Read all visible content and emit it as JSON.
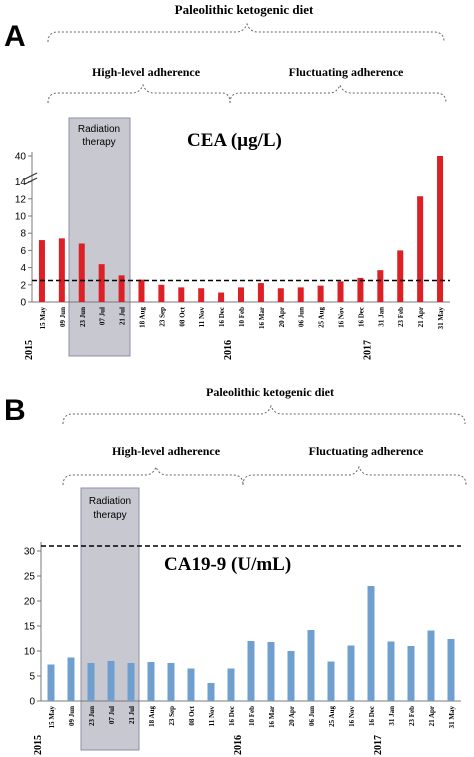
{
  "colors": {
    "cea_bar": "#dd1f26",
    "ca199_bar": "#6f9fcf",
    "radiation_fill": "#c8c8d0",
    "radiation_stroke": "#8e8ea8",
    "axis": "#7a7a7a",
    "text": "#000000"
  },
  "panels": [
    {
      "label": "A",
      "diet_label": "Paleolithic ketogenic diet",
      "phase_labels": [
        "High-level adherence",
        "Fluctuating adherence"
      ],
      "radiation_label_1": "Radiation",
      "radiation_label_2": "therapy",
      "chart_title": "CEA (µg/L)",
      "year_labels": [
        "2015",
        "2016",
        "2017"
      ]
    },
    {
      "label": "B",
      "diet_label": "Paleolithic ketogenic diet",
      "phase_labels": [
        "High-level adherence",
        "Fluctuating adherence"
      ],
      "radiation_label_1": "Radiation",
      "radiation_label_2": "therapy",
      "chart_title": "CA19-9 (U/mL)",
      "year_labels": [
        "2015",
        "2016",
        "2017"
      ]
    }
  ],
  "chart_data": [
    {
      "type": "bar",
      "title": "CEA (µg/L)",
      "categories": [
        "15 May",
        "09 Jun",
        "23 Jun",
        "07 Jul",
        "21 Jul",
        "18 Aug",
        "23 Sep",
        "08 Oct",
        "11 Nov",
        "16 Dec",
        "10 Feb",
        "16 Mar",
        "20 Apr",
        "06 Jun",
        "25 Aug",
        "16 Nov",
        "16 Dec",
        "31 Jan",
        "23 Feb",
        "21 Apr",
        "31 May"
      ],
      "values": [
        7.2,
        7.4,
        6.8,
        4.4,
        3.1,
        2.6,
        2.0,
        1.7,
        1.6,
        1.1,
        1.7,
        2.2,
        1.6,
        1.7,
        1.9,
        2.4,
        2.8,
        3.7,
        6.0,
        12.3,
        40
      ],
      "y_ticks": [
        0,
        2,
        4,
        6,
        8,
        10,
        12,
        14,
        40
      ],
      "ylim": [
        0,
        40
      ],
      "axis_break": [
        15,
        39
      ],
      "reference_line": 2.5,
      "radiation_categories": [
        "23 Jun",
        "07 Jul",
        "21 Jul"
      ],
      "high_adherence_categories": [
        "15 May",
        "09 Jun",
        "23 Jun",
        "07 Jul",
        "21 Jul",
        "18 Aug",
        "23 Sep",
        "08 Oct",
        "11 Nov",
        "16 Dec"
      ],
      "fluctuating_adherence_categories": [
        "10 Feb",
        "16 Mar",
        "20 Apr",
        "06 Jun",
        "25 Aug",
        "16 Nov",
        "16 Dec",
        "31 Jan",
        "23 Feb",
        "21 Apr",
        "31 May"
      ],
      "years": [
        {
          "label": "2015",
          "at_category": "15 May"
        },
        {
          "label": "2016",
          "at_category": "10 Feb"
        },
        {
          "label": "2017",
          "at_category": "31 Jan"
        }
      ],
      "grid": false,
      "legend": "none"
    },
    {
      "type": "bar",
      "title": "CA19-9 (U/mL)",
      "categories": [
        "15 May",
        "09 Jun",
        "23 Jun",
        "07 Jul",
        "21 Jul",
        "18 Aug",
        "23 Sep",
        "08 Oct",
        "11 Nov",
        "16 Dec",
        "10 Feb",
        "16 Mar",
        "20 Apr",
        "06 Jun",
        "25 Aug",
        "16 Nov",
        "16 Dec",
        "31 Jan",
        "23 Feb",
        "21 Apr",
        "31 May"
      ],
      "values": [
        7.3,
        8.7,
        7.6,
        8.0,
        7.6,
        7.8,
        7.6,
        6.5,
        3.6,
        6.5,
        12.0,
        11.8,
        10.0,
        14.2,
        7.9,
        11.1,
        23.0,
        11.9,
        11.0,
        14.1,
        12.4
      ],
      "y_ticks": [
        0,
        5,
        10,
        15,
        20,
        25,
        30
      ],
      "ylim": [
        0,
        31
      ],
      "reference_line": 31,
      "radiation_categories": [
        "23 Jun",
        "07 Jul",
        "21 Jul"
      ],
      "high_adherence_categories": [
        "15 May",
        "09 Jun",
        "23 Jun",
        "07 Jul",
        "21 Jul",
        "18 Aug",
        "23 Sep",
        "08 Oct",
        "11 Nov",
        "16 Dec"
      ],
      "fluctuating_adherence_categories": [
        "10 Feb",
        "16 Mar",
        "20 Apr",
        "06 Jun",
        "25 Aug",
        "16 Nov",
        "16 Dec",
        "31 Jan",
        "23 Feb",
        "21 Apr",
        "31 May"
      ],
      "years": [
        {
          "label": "2015",
          "at_category": "15 May"
        },
        {
          "label": "2016",
          "at_category": "10 Feb"
        },
        {
          "label": "2017",
          "at_category": "31 Jan"
        }
      ],
      "grid": false,
      "legend": "none"
    }
  ]
}
